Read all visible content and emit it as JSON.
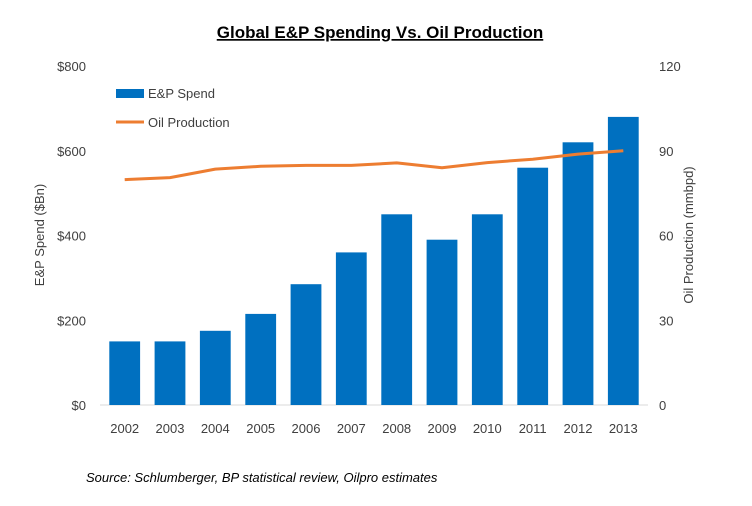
{
  "chart_data": {
    "type": "bar",
    "title": "Global E&P Spending Vs. Oil Production",
    "categories": [
      "2002",
      "2003",
      "2004",
      "2005",
      "2006",
      "2007",
      "2008",
      "2009",
      "2010",
      "2011",
      "2012",
      "2013"
    ],
    "series": [
      {
        "name": "E&P Spend",
        "type": "bar",
        "axis": "left",
        "color": "#0070C0",
        "values": [
          150,
          150,
          175,
          215,
          285,
          360,
          450,
          390,
          450,
          560,
          620,
          680
        ]
      },
      {
        "name": "Oil Production",
        "type": "line",
        "axis": "right",
        "color": "#ED7D31",
        "values": [
          79.8,
          80.5,
          83.5,
          84.5,
          84.8,
          84.8,
          85.7,
          84.0,
          85.8,
          87.0,
          88.8,
          90.0
        ]
      }
    ],
    "ylabel": "E&P Spend ($Bn)",
    "y2label": "Oil Production (mmbpd)",
    "ylim": [
      0,
      800
    ],
    "y2lim": [
      0,
      120
    ],
    "yticks": [
      "$0",
      "$200",
      "$400",
      "$600",
      "$800"
    ],
    "y2ticks": [
      "0",
      "30",
      "60",
      "90",
      "120"
    ],
    "grid": false,
    "legend_position": "top-left",
    "source": "Source: Schlumberger, BP statistical review, Oilpro estimates"
  }
}
